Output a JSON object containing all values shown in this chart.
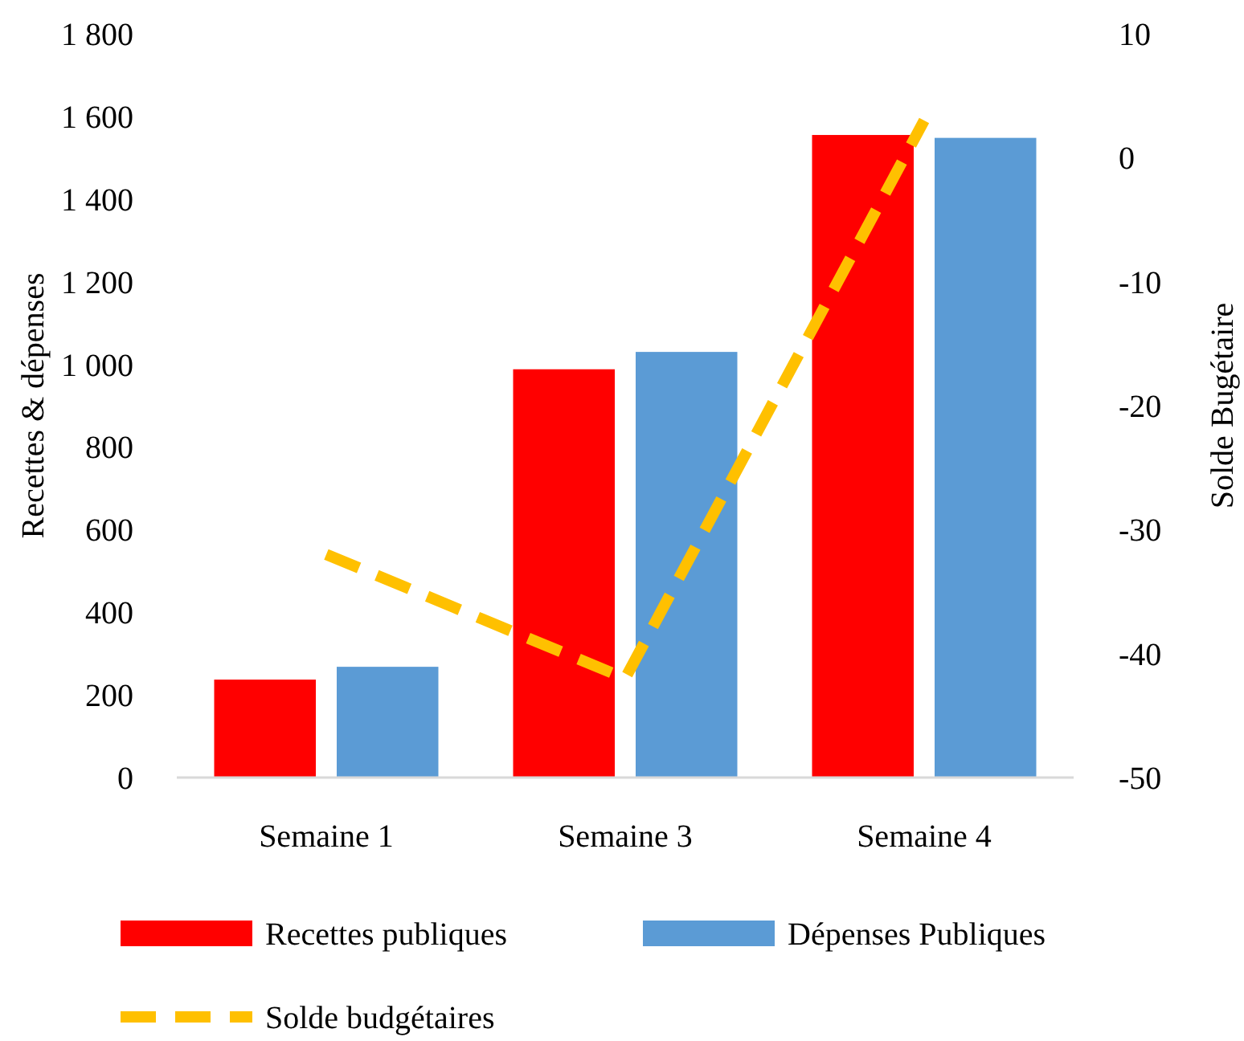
{
  "chart_data": {
    "type": "bar",
    "ylabel": "Recettes & dépenses",
    "y2label": "Solde Bugétaire",
    "categories": [
      "Semaine 1",
      "Semaine 3",
      "Semaine 4"
    ],
    "series": [
      {
        "name": "Recettes publiques",
        "color": "#ff0000",
        "values": [
          237,
          988,
          1555
        ]
      },
      {
        "name": "Dépenses Publiques",
        "color": "#5b9bd5",
        "values": [
          268,
          1030,
          1548
        ]
      },
      {
        "name": "Solde budgétaires",
        "type": "line",
        "axis": "y2",
        "color": "#ffc000",
        "line_style": "dashed",
        "values": [
          -32,
          -42,
          3
        ]
      }
    ],
    "ylim": [
      0,
      1800
    ],
    "yticks": [
      {
        "value": 0,
        "label": "0"
      },
      {
        "value": 200,
        "label": "200"
      },
      {
        "value": 400,
        "label": "400"
      },
      {
        "value": 600,
        "label": "600"
      },
      {
        "value": 800,
        "label": "800"
      },
      {
        "value": 1000,
        "label": "1 000"
      },
      {
        "value": 1200,
        "label": "1 200"
      },
      {
        "value": 1400,
        "label": "1 400"
      },
      {
        "value": 1600,
        "label": "1 600"
      },
      {
        "value": 1800,
        "label": "1 800"
      }
    ],
    "y2lim": [
      -50,
      10
    ],
    "y2ticks": [
      -50,
      -40,
      -30,
      -20,
      -10,
      0,
      10
    ],
    "legend": "bottom",
    "grid": false
  }
}
